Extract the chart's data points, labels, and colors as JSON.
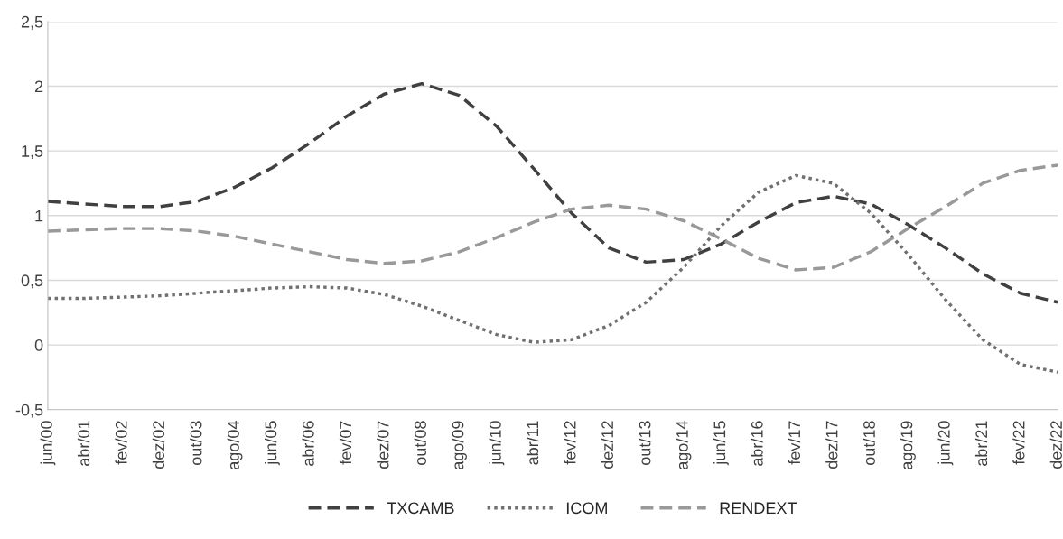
{
  "chart_data": {
    "type": "line",
    "categories": [
      "jun/00",
      "abr/01",
      "fev/02",
      "dez/02",
      "out/03",
      "ago/04",
      "jun/05",
      "abr/06",
      "fev/07",
      "dez/07",
      "out/08",
      "ago/09",
      "jun/10",
      "abr/11",
      "fev/12",
      "dez/12",
      "out/13",
      "ago/14",
      "jun/15",
      "abr/16",
      "fev/17",
      "dez/17",
      "out/18",
      "ago/19",
      "jun/20",
      "abr/21",
      "fev/22",
      "dez/22"
    ],
    "series": [
      {
        "name": "TXCAMB",
        "color": "#404040",
        "line_style": "dashed",
        "values": [
          1.11,
          1.09,
          1.07,
          1.07,
          1.11,
          1.22,
          1.37,
          1.56,
          1.77,
          1.94,
          2.02,
          1.93,
          1.69,
          1.36,
          1.02,
          0.75,
          0.64,
          0.66,
          0.78,
          0.95,
          1.1,
          1.15,
          1.09,
          0.93,
          0.75,
          0.55,
          0.4,
          0.33
        ]
      },
      {
        "name": "ICOM",
        "color": "#707070",
        "line_style": "dotted",
        "values": [
          0.36,
          0.36,
          0.37,
          0.38,
          0.4,
          0.42,
          0.44,
          0.45,
          0.44,
          0.39,
          0.3,
          0.19,
          0.08,
          0.02,
          0.04,
          0.15,
          0.33,
          0.6,
          0.92,
          1.18,
          1.31,
          1.25,
          1.02,
          0.7,
          0.35,
          0.04,
          -0.15,
          -0.21
        ]
      },
      {
        "name": "RENDEXT",
        "color": "#999999",
        "line_style": "dashed",
        "values": [
          0.88,
          0.89,
          0.9,
          0.9,
          0.88,
          0.84,
          0.78,
          0.72,
          0.66,
          0.63,
          0.65,
          0.72,
          0.83,
          0.95,
          1.05,
          1.08,
          1.05,
          0.96,
          0.82,
          0.67,
          0.58,
          0.6,
          0.72,
          0.9,
          1.07,
          1.25,
          1.35,
          1.39
        ]
      }
    ],
    "ylim": [
      -0.5,
      2.5
    ],
    "yticks": [
      {
        "value": -0.5,
        "label": "-0,5"
      },
      0,
      {
        "value": 0.5,
        "label": "0,5"
      },
      1,
      {
        "value": 1.5,
        "label": "1,5"
      },
      2,
      {
        "value": 2.5,
        "label": "2,5"
      }
    ],
    "grid": "y",
    "legend": "bottom",
    "marker": "none"
  }
}
